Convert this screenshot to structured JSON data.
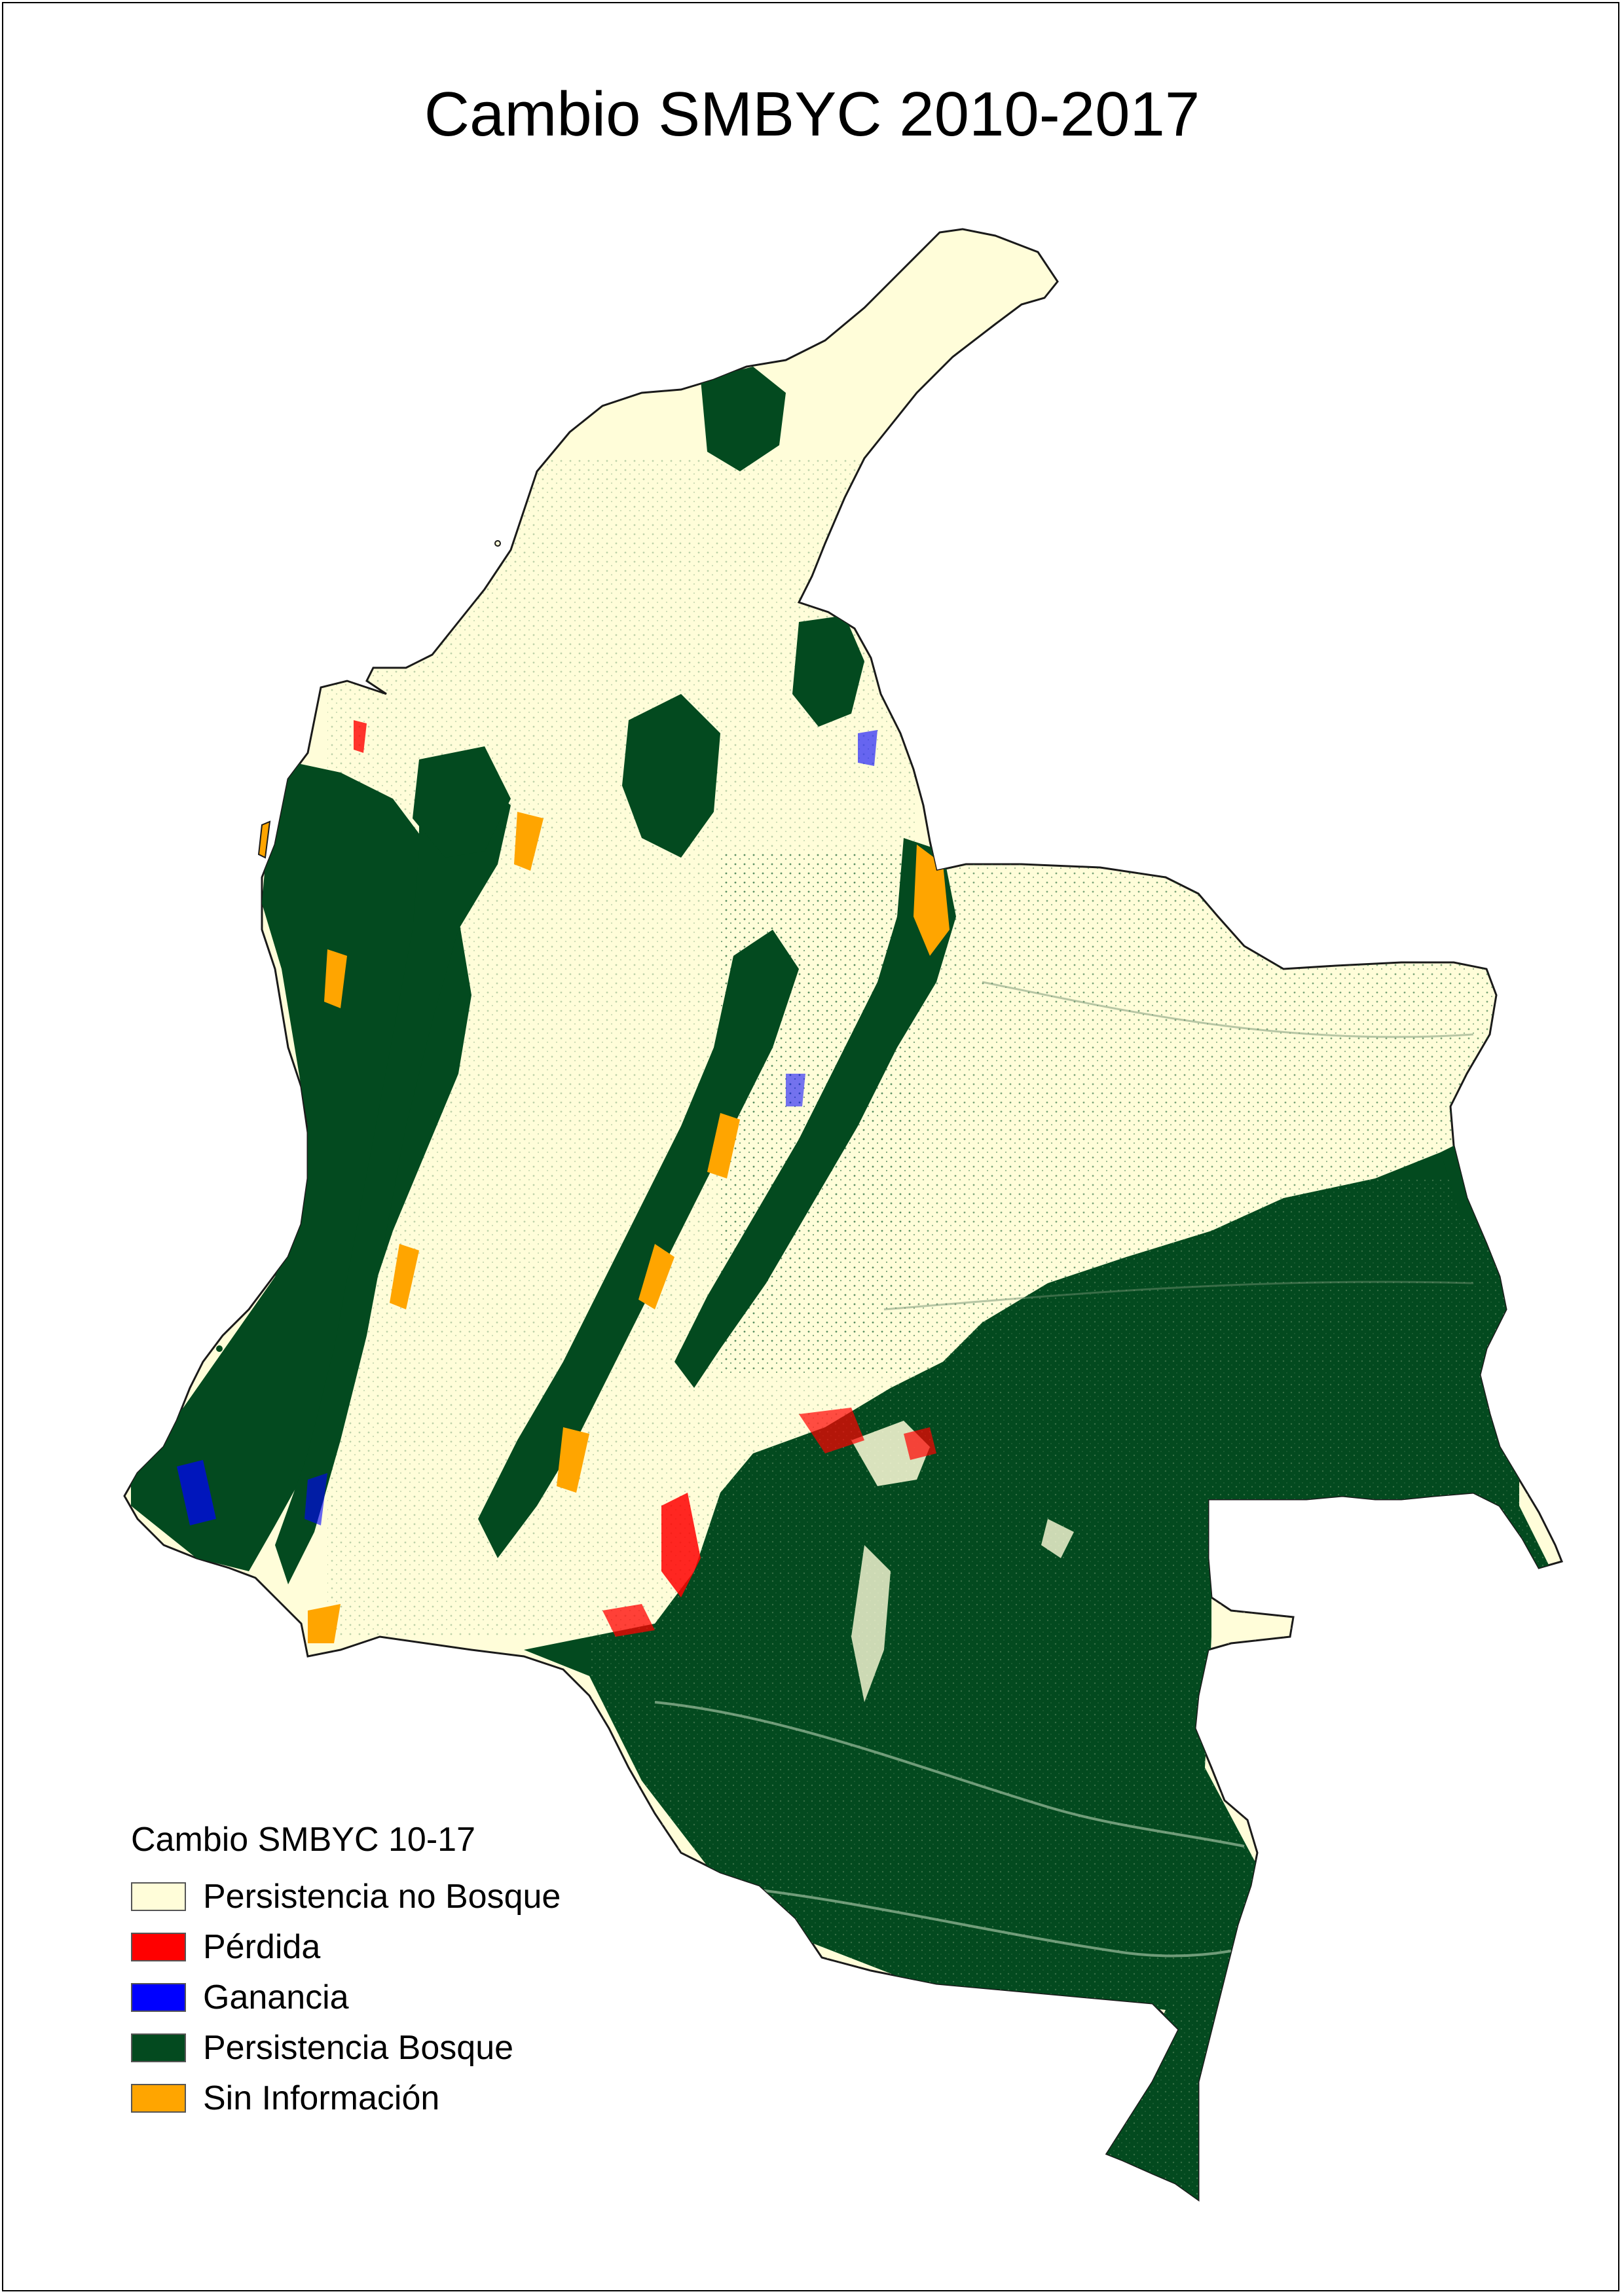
{
  "title": "Cambio SMBYC 2010-2017",
  "legend": {
    "title": "Cambio SMBYC 10-17",
    "items": [
      {
        "label": "Persistencia no Bosque",
        "color": "#fffdd9"
      },
      {
        "label": "Pérdida",
        "color": "#ff0000"
      },
      {
        "label": "Ganancia",
        "color": "#0000ff"
      },
      {
        "label": "Persistencia Bosque",
        "color": "#034a1f"
      },
      {
        "label": "Sin Información",
        "color": "#ffa500"
      }
    ]
  }
}
